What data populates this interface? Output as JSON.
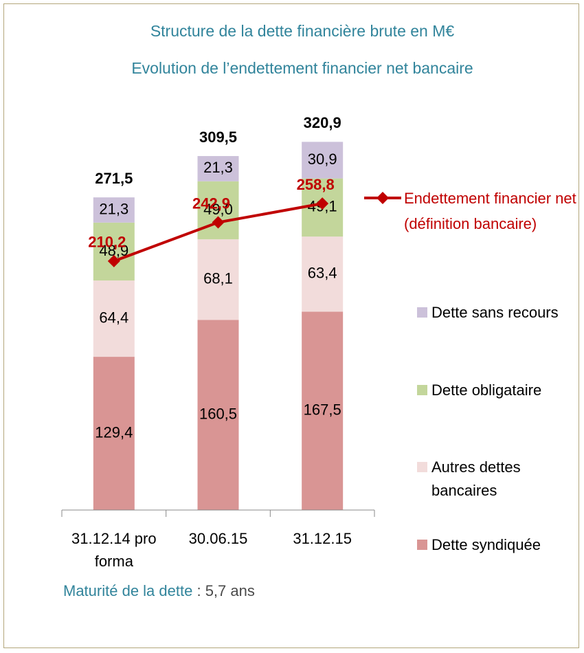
{
  "chart_data": {
    "type": "stacked_bar_line",
    "title": "Structure de la dette financière brute en M€",
    "subtitle": "Evolution de l’endettement financier net bancaire",
    "categories": [
      "31.12.14 pro forma",
      "30.06.15",
      "31.12.15"
    ],
    "ylim": [
      0,
      350
    ],
    "series": [
      {
        "name": "Dette syndiquée",
        "color": "#d99594",
        "values": [
          129.4,
          160.5,
          167.5
        ],
        "value_labels": [
          "129,4",
          "160,5",
          "167,5"
        ]
      },
      {
        "name": "Autres dettes bancaires",
        "color": "#f2dcdb",
        "values": [
          64.4,
          68.1,
          63.4
        ],
        "value_labels": [
          "64,4",
          "68,1",
          "63,4"
        ]
      },
      {
        "name": "Dette obligataire",
        "color": "#c3d69b",
        "values": [
          48.9,
          49.0,
          49.1
        ],
        "value_labels": [
          "48,9",
          "49,0",
          "49,1"
        ]
      },
      {
        "name": "Dette sans recours",
        "color": "#ccc1da",
        "values": [
          21.3,
          21.3,
          30.9
        ],
        "value_labels": [
          "21,3",
          "21,3",
          "30,9"
        ]
      }
    ],
    "totals": {
      "values": [
        271.5,
        309.5,
        320.9
      ],
      "value_labels": [
        "271,5",
        "309,5",
        "320,9"
      ]
    },
    "line": {
      "name": "Endettement financier net (définition bancaire)",
      "color": "#c00000",
      "values": [
        210.2,
        242.9,
        258.8
      ],
      "value_labels": [
        "210,2",
        "242,9",
        "258,8"
      ]
    },
    "footer": {
      "label": "Maturité de la dette",
      "separator": " : ",
      "value": "5,7",
      "unit": "ans"
    }
  }
}
